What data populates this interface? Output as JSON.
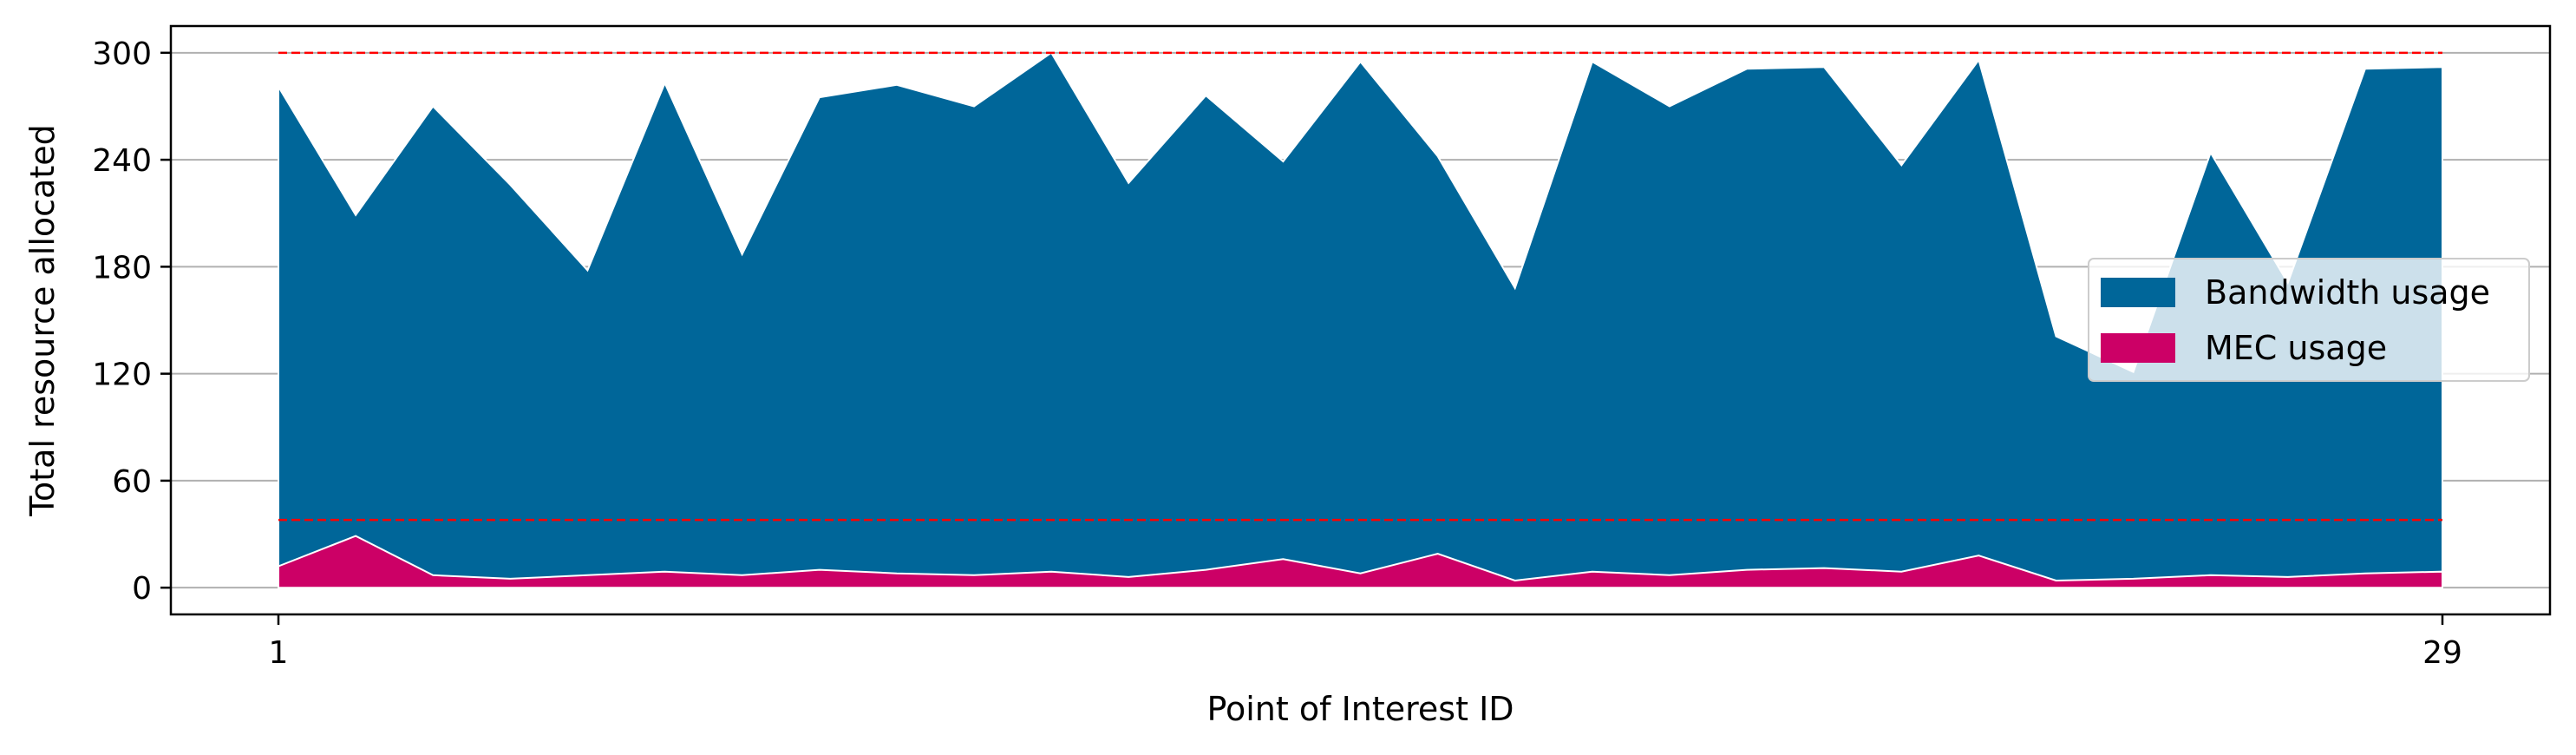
{
  "chart_data": {
    "type": "area",
    "stacked": false,
    "xlabel": "Point of Interest ID",
    "ylabel": "Total resource allocated",
    "xlim": [
      1,
      29
    ],
    "ylim": [
      -15,
      315
    ],
    "x_ticks": [
      "1",
      "29"
    ],
    "y_ticks": [
      "0",
      "60",
      "120",
      "180",
      "240",
      "300"
    ],
    "grid": "horizontal",
    "legend_position": "center-right",
    "x": [
      1,
      2,
      3,
      4,
      5,
      6,
      7,
      8,
      9,
      10,
      11,
      12,
      13,
      14,
      15,
      16,
      17,
      18,
      19,
      20,
      21,
      22,
      23,
      24,
      25,
      26,
      27,
      28,
      29
    ],
    "series": [
      {
        "name": "Bandwidth usage",
        "color": "#006699",
        "values": [
          281,
          209,
          270,
          226,
          178,
          283,
          187,
          275,
          282,
          270,
          300,
          227,
          276,
          239,
          295,
          242,
          168,
          295,
          270,
          291,
          292,
          237,
          296,
          141,
          121,
          244,
          171,
          291,
          292
        ]
      },
      {
        "name": "MEC usage",
        "color": "#cc0066",
        "values": [
          12,
          29,
          7,
          5,
          7,
          9,
          7,
          10,
          8,
          7,
          9,
          6,
          10,
          16,
          8,
          19,
          4,
          9,
          7,
          10,
          11,
          9,
          18,
          4,
          5,
          7,
          6,
          8,
          9
        ]
      }
    ],
    "reference_lines": [
      {
        "y": 300,
        "color": "#ff0000",
        "style": "dashed"
      },
      {
        "y": 38,
        "color": "#ff0000",
        "style": "dashed"
      }
    ]
  }
}
